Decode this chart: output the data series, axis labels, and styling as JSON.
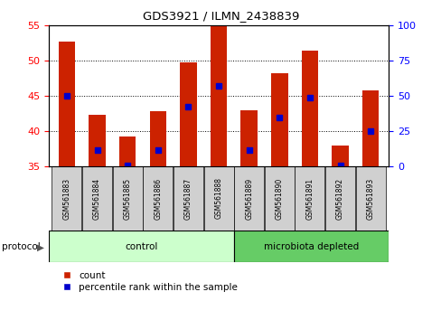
{
  "title": "GDS3921 / ILMN_2438839",
  "samples": [
    "GSM561883",
    "GSM561884",
    "GSM561885",
    "GSM561886",
    "GSM561887",
    "GSM561888",
    "GSM561889",
    "GSM561890",
    "GSM561891",
    "GSM561892",
    "GSM561893"
  ],
  "counts": [
    52.7,
    42.3,
    39.3,
    42.8,
    49.8,
    55.0,
    43.0,
    48.2,
    51.5,
    38.0,
    45.8
  ],
  "percentile_ranks": [
    45.0,
    37.3,
    35.2,
    37.3,
    43.5,
    46.5,
    37.3,
    42.0,
    44.8,
    35.2,
    40.0
  ],
  "ymin": 35,
  "ymax": 55,
  "yticks": [
    35,
    40,
    45,
    50,
    55
  ],
  "right_yticks": [
    0,
    25,
    50,
    75,
    100
  ],
  "bar_color": "#cc2200",
  "marker_color": "#0000cc",
  "bar_width": 0.55,
  "n_ctrl": 6,
  "n_micro": 5,
  "control_color": "#ccffcc",
  "microbiota_color": "#66cc66",
  "protocol_label": "protocol",
  "control_label": "control",
  "microbiota_label": "microbiota depleted",
  "legend_count_label": "count",
  "legend_percentile_label": "percentile rank within the sample"
}
